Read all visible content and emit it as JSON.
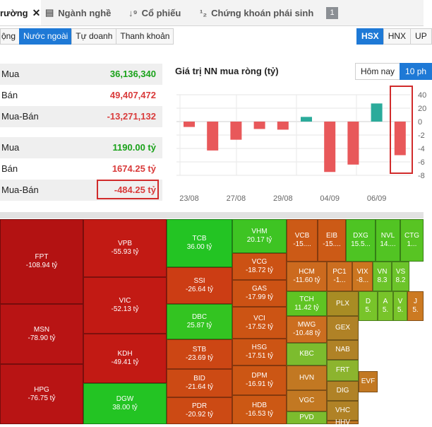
{
  "top_nav": {
    "tabs": [
      {
        "label": "rường",
        "icon": "close-icon"
      },
      {
        "label": "Ngành nghề",
        "icon": "list-icon"
      },
      {
        "label": "Cổ phiếu",
        "icon": "sort-icon"
      },
      {
        "label": "Chứng khoán phái sinh",
        "icon": "sort-icon"
      }
    ],
    "badge": "1"
  },
  "sub_tabs": [
    "ộng",
    "Nước ngoài",
    "Tự doanh",
    "Thanh khoản"
  ],
  "exchanges": [
    "HSX",
    "HNX",
    "UP"
  ],
  "stats": {
    "volume": [
      {
        "label": "Mua",
        "value": "36,136,340"
      },
      {
        "label": "Bán",
        "value": "49,407,472"
      },
      {
        "label": "Mua-Bán",
        "value": "-13,271,132"
      }
    ],
    "value": [
      {
        "label": "Mua",
        "value": "1190.00 tỷ"
      },
      {
        "label": "Bán",
        "value": "1674.25 tỷ"
      },
      {
        "label": "Mua-Bán",
        "value": "-484.25 tỷ"
      }
    ]
  },
  "chart_ranges": [
    "Hôm nay",
    "10 ph"
  ],
  "chart_data": {
    "type": "bar",
    "title": "Giá trị NN mua ròng (tỷ)",
    "x_tick_labels": [
      "23/08",
      "27/08",
      "29/08",
      "04/09",
      "06/09"
    ],
    "y_tick_labels": [
      "40",
      "20",
      "0",
      "-2",
      "-4",
      "-6",
      "-8"
    ],
    "ylim": [
      -80,
      45
    ],
    "grid": true,
    "series": [
      {
        "values": [
          -8,
          -43,
          -27,
          -11,
          -12,
          7,
          -75,
          -64,
          27,
          -50
        ],
        "colors": [
          "#e8585a",
          "#e8585a",
          "#e8585a",
          "#e8585a",
          "#e8585a",
          "#2bab9b",
          "#e8585a",
          "#e8585a",
          "#2bab9b",
          "#e8585a"
        ]
      }
    ]
  },
  "treemap": [
    {
      "name": "FPT",
      "value": "-108.94 tỷ",
      "color": "#b31212"
    },
    {
      "name": "MSN",
      "value": "-78.90 tỷ",
      "color": "#b81414"
    },
    {
      "name": "HPG",
      "value": "-76.75 tỷ",
      "color": "#b81414"
    },
    {
      "name": "VPB",
      "value": "-55.93 tỷ",
      "color": "#c21a14"
    },
    {
      "name": "VIC",
      "value": "-52.13 tỷ",
      "color": "#c21a14"
    },
    {
      "name": "KDH",
      "value": "-49.41 tỷ",
      "color": "#c21a14"
    },
    {
      "name": "DGW",
      "value": "38.00 tỷ",
      "color": "#23c423"
    },
    {
      "name": "TCB",
      "value": "36.00 tỷ",
      "color": "#23c423"
    },
    {
      "name": "SSI",
      "value": "-26.64 tỷ",
      "color": "#cc3d14"
    },
    {
      "name": "DBC",
      "value": "25.87 tỷ",
      "color": "#33c421"
    },
    {
      "name": "STB",
      "value": "-23.69 tỷ",
      "color": "#cc4614"
    },
    {
      "name": "BID",
      "value": "-21.64 tỷ",
      "color": "#cc4a14"
    },
    {
      "name": "PDR",
      "value": "-20.92 tỷ",
      "color": "#cc4a14"
    },
    {
      "name": "VHM",
      "value": "20.17 tỷ",
      "color": "#3ec423"
    },
    {
      "name": "VCG",
      "value": "-18.72 tỷ",
      "color": "#cc5214"
    },
    {
      "name": "GAS",
      "value": "-17.99 tỷ",
      "color": "#cc5214"
    },
    {
      "name": "VCI",
      "value": "-17.52 tỷ",
      "color": "#cc5414"
    },
    {
      "name": "HSG",
      "value": "-17.51 tỷ",
      "color": "#cc5414"
    },
    {
      "name": "DPM",
      "value": "-16.91 tỷ",
      "color": "#cc5614"
    },
    {
      "name": "HDB",
      "value": "-16.53 tỷ",
      "color": "#cc5814"
    },
    {
      "name": "VCB",
      "value": "-15....",
      "color": "#cc5a16"
    },
    {
      "name": "EIB",
      "value": "-15....",
      "color": "#cc5a16"
    },
    {
      "name": "DXG",
      "value": "15.5...",
      "color": "#4ec423"
    },
    {
      "name": "NVL",
      "value": "14....",
      "color": "#52c423"
    },
    {
      "name": "CTG",
      "value": "1...",
      "color": "#58c423"
    },
    {
      "name": "HCM",
      "value": "-11.60 tỷ",
      "color": "#cc6a1e"
    },
    {
      "name": "PC1",
      "value": "-1...",
      "color": "#cc6e20"
    },
    {
      "name": "VIX",
      "value": "-8...",
      "color": "#cc7620"
    },
    {
      "name": "VN",
      "value": "8.3",
      "color": "#6cc42a"
    },
    {
      "name": "VS",
      "value": "8.2",
      "color": "#6cc42a"
    },
    {
      "name": "TCH",
      "value": "11.42 tỷ",
      "color": "#5fc423"
    },
    {
      "name": "MWG",
      "value": "-10.48 tỷ",
      "color": "#cc6e20"
    },
    {
      "name": "PLX",
      "value": "",
      "color": "#a88c24"
    },
    {
      "name": "GEX",
      "value": "",
      "color": "#b08226"
    },
    {
      "name": "KBC",
      "value": "",
      "color": "#7cbc2e"
    },
    {
      "name": "NAB",
      "value": "",
      "color": "#b08226"
    },
    {
      "name": "HVN",
      "value": "",
      "color": "#c27822"
    },
    {
      "name": "FRT",
      "value": "",
      "color": "#8cb42e"
    },
    {
      "name": "VGC",
      "value": "",
      "color": "#c27822"
    },
    {
      "name": "DIG",
      "value": "",
      "color": "#b08226"
    },
    {
      "name": "PVD",
      "value": "",
      "color": "#7cbc2e"
    },
    {
      "name": "VHC",
      "value": "",
      "color": "#b08226"
    },
    {
      "name": "HHV",
      "value": "",
      "color": "#c27822"
    },
    {
      "name": "D",
      "value": "5.",
      "color": "#78c42a"
    },
    {
      "name": "A",
      "value": "5.",
      "color": "#78c42a"
    },
    {
      "name": "V",
      "value": "5.",
      "color": "#78c42a"
    },
    {
      "name": "J",
      "value": "5.",
      "color": "#cc7a22"
    },
    {
      "name": "EVF",
      "value": "",
      "color": "#c27822"
    }
  ]
}
